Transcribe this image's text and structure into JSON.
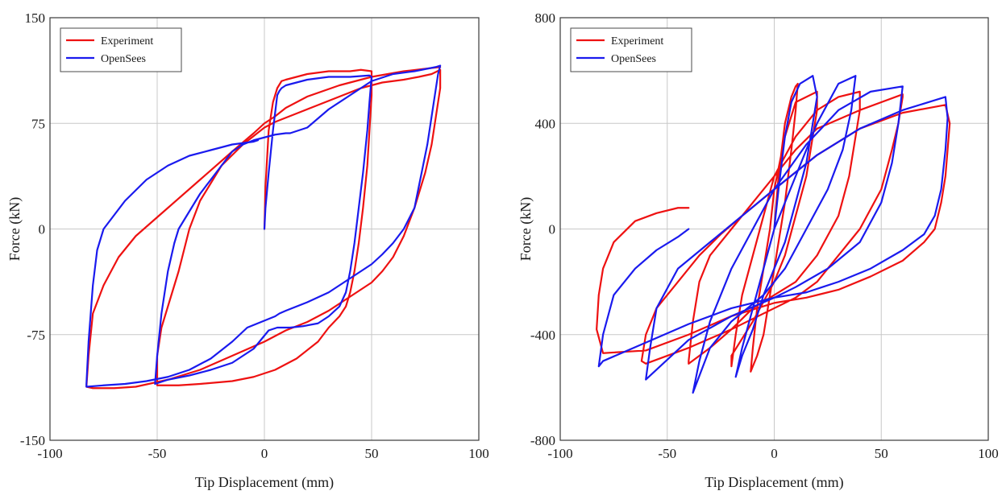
{
  "chart_data": [
    {
      "type": "line",
      "xlabel": "Tip Displacement (mm)",
      "ylabel": "Force (kN)",
      "xlim": [
        -100,
        100
      ],
      "ylim": [
        -150,
        150
      ],
      "xticks": [
        -100,
        -50,
        0,
        50,
        100
      ],
      "yticks": [
        -150,
        -75,
        0,
        75,
        150
      ],
      "grid": true,
      "legend": "top-left",
      "series": [
        {
          "name": "Experiment",
          "color": "#ee1111",
          "x": [
            0,
            0.5,
            2,
            4,
            6,
            8,
            10,
            15,
            20,
            25,
            30,
            35,
            40,
            45,
            50,
            50,
            49,
            48,
            46,
            44,
            42,
            40,
            38,
            35,
            30,
            25,
            15,
            5,
            -5,
            -15,
            -30,
            -40,
            -50,
            -50,
            -48,
            -45,
            -40,
            -35,
            -30,
            -20,
            -10,
            0,
            5,
            15,
            25,
            35,
            45,
            55,
            65,
            72,
            78,
            82,
            82,
            80,
            78,
            75,
            70,
            65,
            60,
            55,
            50,
            40,
            30,
            20,
            10,
            0,
            -15,
            -30,
            -45,
            -60,
            -70,
            -80,
            -83,
            -82,
            -80,
            -75,
            -68,
            -60,
            -45,
            -30,
            -15,
            -5,
            0,
            5,
            10,
            20,
            35,
            50,
            65,
            82
          ],
          "y": [
            0,
            30,
            70,
            90,
            100,
            105,
            106,
            108,
            110,
            111,
            112,
            112,
            112,
            113,
            112,
            95,
            70,
            45,
            15,
            -10,
            -30,
            -45,
            -55,
            -62,
            -70,
            -80,
            -92,
            -100,
            -105,
            -108,
            -110,
            -111,
            -111,
            -90,
            -70,
            -55,
            -30,
            0,
            20,
            45,
            60,
            72,
            76,
            82,
            88,
            94,
            100,
            104,
            106,
            108,
            110,
            113,
            100,
            80,
            60,
            40,
            15,
            -5,
            -20,
            -30,
            -38,
            -48,
            -58,
            -66,
            -72,
            -80,
            -90,
            -100,
            -107,
            -112,
            -113,
            -113,
            -112,
            -90,
            -60,
            -40,
            -20,
            -5,
            15,
            35,
            55,
            68,
            75,
            80,
            86,
            94,
            102,
            108,
            112,
            115
          ]
        },
        {
          "name": "OpenSees",
          "color": "#1a1aee",
          "x": [
            0,
            0.5,
            2,
            4,
            6,
            7,
            8,
            10,
            15,
            20,
            30,
            40,
            49,
            50,
            49,
            48,
            46,
            44,
            42,
            40,
            38,
            35,
            30,
            25,
            18,
            12,
            8,
            6,
            4,
            2,
            -5,
            -15,
            -25,
            -35,
            -45,
            -51,
            -50,
            -48,
            -45,
            -42,
            -40,
            -38,
            -36,
            -34,
            -32,
            -30,
            -25,
            -20,
            -15,
            -10,
            -5,
            0,
            5,
            10,
            12,
            20,
            30,
            40,
            50,
            60,
            70,
            80,
            82,
            81,
            80,
            78,
            76,
            74,
            72,
            70,
            65,
            60,
            55,
            50,
            40,
            30,
            20,
            10,
            7,
            5,
            -8,
            -15,
            -25,
            -35,
            -45,
            -55,
            -65,
            -75,
            -83,
            -83,
            -82,
            -80,
            -78,
            -75,
            -70,
            -65,
            -55,
            -45,
            -35,
            -25,
            -15,
            -5,
            -3
          ],
          "y": [
            0,
            15,
            40,
            70,
            95,
            98,
            100,
            102,
            104,
            106,
            108,
            108,
            109,
            108,
            90,
            70,
            40,
            15,
            -10,
            -30,
            -45,
            -55,
            -62,
            -67,
            -69,
            -70,
            -70,
            -70,
            -71,
            -72,
            -85,
            -95,
            -100,
            -104,
            -107,
            -110,
            -90,
            -60,
            -30,
            -10,
            0,
            5,
            10,
            15,
            20,
            25,
            35,
            45,
            55,
            60,
            63,
            65,
            67,
            68,
            68,
            72,
            85,
            95,
            105,
            110,
            112,
            115,
            116,
            110,
            100,
            80,
            60,
            45,
            30,
            15,
            0,
            -10,
            -18,
            -25,
            -35,
            -45,
            -52,
            -58,
            -60,
            -62,
            -70,
            -80,
            -92,
            -100,
            -105,
            -108,
            -110,
            -111,
            -112,
            -110,
            -80,
            -40,
            -15,
            0,
            10,
            20,
            35,
            45,
            52,
            56,
            60,
            62,
            63
          ]
        }
      ]
    },
    {
      "type": "line",
      "xlabel": "Tip Displacement (mm)",
      "ylabel": "Force (kN)",
      "xlim": [
        -100,
        100
      ],
      "ylim": [
        -800,
        800
      ],
      "xticks": [
        -100,
        -50,
        0,
        50,
        100
      ],
      "yticks": [
        -800,
        -400,
        0,
        400,
        800
      ],
      "grid": true,
      "legend": "top-left",
      "series": [
        {
          "name": "Experiment",
          "color": "#ee1111",
          "x": [
            0,
            2,
            5,
            8,
            10,
            11,
            10,
            8,
            5,
            2,
            0,
            -2,
            -5,
            -8,
            -10,
            -11,
            -10,
            -8,
            -5,
            -2,
            0,
            5,
            10,
            20,
            20,
            18,
            15,
            10,
            5,
            0,
            -10,
            -20,
            -20,
            -18,
            -15,
            -10,
            -5,
            0,
            10,
            20,
            30,
            40,
            40,
            38,
            35,
            30,
            20,
            10,
            0,
            -10,
            -20,
            -30,
            -40,
            -40,
            -38,
            -35,
            -30,
            -20,
            -10,
            0,
            10,
            20,
            40,
            60,
            60,
            58,
            55,
            50,
            40,
            30,
            20,
            10,
            0,
            -20,
            -40,
            -60,
            -62,
            -60,
            -55,
            -45,
            -35,
            -25,
            -15,
            0,
            20,
            40,
            60,
            80,
            82,
            81,
            80,
            78,
            75,
            70,
            60,
            45,
            30,
            15,
            0,
            -20,
            -40,
            -60,
            -80,
            -83,
            -82,
            -80,
            -75,
            -65,
            -55,
            -45,
            -40
          ],
          "y": [
            0,
            200,
            400,
            500,
            540,
            550,
            450,
            300,
            100,
            -50,
            -150,
            -250,
            -400,
            -480,
            -520,
            -540,
            -450,
            -300,
            -150,
            0,
            150,
            350,
            480,
            520,
            450,
            350,
            200,
            50,
            -100,
            -200,
            -350,
            -480,
            -520,
            -400,
            -250,
            -100,
            50,
            200,
            350,
            450,
            500,
            520,
            450,
            350,
            200,
            50,
            -100,
            -200,
            -250,
            -300,
            -380,
            -450,
            -510,
            -500,
            -350,
            -200,
            -100,
            0,
            100,
            200,
            300,
            380,
            450,
            510,
            500,
            400,
            300,
            150,
            0,
            -100,
            -200,
            -260,
            -300,
            -380,
            -450,
            -510,
            -500,
            -400,
            -300,
            -200,
            -100,
            -20,
            50,
            150,
            280,
            380,
            440,
            470,
            400,
            300,
            200,
            100,
            0,
            -50,
            -120,
            -180,
            -230,
            -260,
            -280,
            -330,
            -400,
            -460,
            -470,
            -380,
            -250,
            -150,
            -50,
            30,
            60,
            80,
            80
          ]
        },
        {
          "name": "OpenSees",
          "color": "#1a1aee",
          "x": [
            0,
            2,
            5,
            8,
            12,
            18,
            20,
            18,
            15,
            10,
            5,
            0,
            -5,
            -10,
            -15,
            -18,
            -15,
            -10,
            -5,
            0,
            10,
            20,
            30,
            38,
            36,
            32,
            25,
            15,
            5,
            -5,
            -20,
            -30,
            -38,
            -35,
            -30,
            -20,
            -10,
            0,
            15,
            30,
            45,
            60,
            58,
            55,
            50,
            40,
            25,
            10,
            0,
            -20,
            -40,
            -60,
            -58,
            -55,
            -45,
            -30,
            -15,
            0,
            20,
            40,
            60,
            80,
            81,
            80,
            78,
            75,
            70,
            60,
            45,
            30,
            15,
            0,
            -20,
            -40,
            -60,
            -80,
            -82,
            -80,
            -75,
            -65,
            -55,
            -45,
            -40
          ],
          "y": [
            0,
            150,
            350,
            480,
            550,
            580,
            500,
            400,
            250,
            100,
            -50,
            -150,
            -250,
            -380,
            -480,
            -560,
            -450,
            -300,
            -150,
            0,
            200,
            400,
            550,
            580,
            450,
            300,
            150,
            0,
            -150,
            -250,
            -350,
            -450,
            -620,
            -500,
            -350,
            -150,
            0,
            150,
            320,
            450,
            520,
            540,
            400,
            250,
            100,
            -50,
            -150,
            -220,
            -260,
            -330,
            -420,
            -570,
            -450,
            -300,
            -150,
            -50,
            50,
            150,
            280,
            380,
            450,
            500,
            420,
            300,
            150,
            50,
            -20,
            -80,
            -150,
            -200,
            -240,
            -260,
            -300,
            -360,
            -430,
            -500,
            -520,
            -400,
            -250,
            -150,
            -80,
            -30,
            0
          ]
        }
      ]
    }
  ]
}
